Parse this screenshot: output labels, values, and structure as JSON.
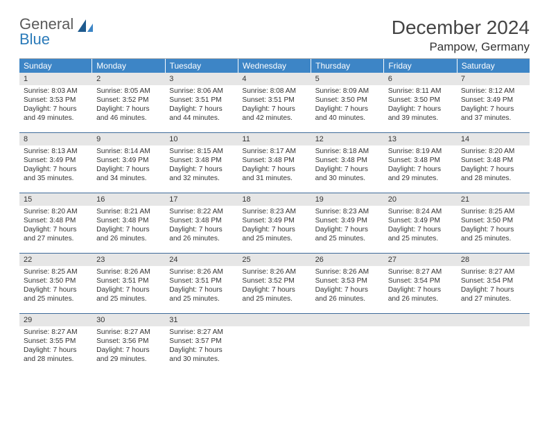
{
  "logo": {
    "word1": "General",
    "word2": "Blue"
  },
  "title": "December 2024",
  "location": "Pampow, Germany",
  "colors": {
    "header_bg": "#3d85c6",
    "header_text": "#ffffff",
    "daynum_bg": "#e6e6e6",
    "week_divider": "#3d6a99",
    "logo_accent": "#2a7ab9",
    "logo_gray": "#5a5a5a"
  },
  "dow": [
    "Sunday",
    "Monday",
    "Tuesday",
    "Wednesday",
    "Thursday",
    "Friday",
    "Saturday"
  ],
  "weeks": [
    [
      {
        "n": "1",
        "sr": "Sunrise: 8:03 AM",
        "ss": "Sunset: 3:53 PM",
        "d1": "Daylight: 7 hours",
        "d2": "and 49 minutes."
      },
      {
        "n": "2",
        "sr": "Sunrise: 8:05 AM",
        "ss": "Sunset: 3:52 PM",
        "d1": "Daylight: 7 hours",
        "d2": "and 46 minutes."
      },
      {
        "n": "3",
        "sr": "Sunrise: 8:06 AM",
        "ss": "Sunset: 3:51 PM",
        "d1": "Daylight: 7 hours",
        "d2": "and 44 minutes."
      },
      {
        "n": "4",
        "sr": "Sunrise: 8:08 AM",
        "ss": "Sunset: 3:51 PM",
        "d1": "Daylight: 7 hours",
        "d2": "and 42 minutes."
      },
      {
        "n": "5",
        "sr": "Sunrise: 8:09 AM",
        "ss": "Sunset: 3:50 PM",
        "d1": "Daylight: 7 hours",
        "d2": "and 40 minutes."
      },
      {
        "n": "6",
        "sr": "Sunrise: 8:11 AM",
        "ss": "Sunset: 3:50 PM",
        "d1": "Daylight: 7 hours",
        "d2": "and 39 minutes."
      },
      {
        "n": "7",
        "sr": "Sunrise: 8:12 AM",
        "ss": "Sunset: 3:49 PM",
        "d1": "Daylight: 7 hours",
        "d2": "and 37 minutes."
      }
    ],
    [
      {
        "n": "8",
        "sr": "Sunrise: 8:13 AM",
        "ss": "Sunset: 3:49 PM",
        "d1": "Daylight: 7 hours",
        "d2": "and 35 minutes."
      },
      {
        "n": "9",
        "sr": "Sunrise: 8:14 AM",
        "ss": "Sunset: 3:49 PM",
        "d1": "Daylight: 7 hours",
        "d2": "and 34 minutes."
      },
      {
        "n": "10",
        "sr": "Sunrise: 8:15 AM",
        "ss": "Sunset: 3:48 PM",
        "d1": "Daylight: 7 hours",
        "d2": "and 32 minutes."
      },
      {
        "n": "11",
        "sr": "Sunrise: 8:17 AM",
        "ss": "Sunset: 3:48 PM",
        "d1": "Daylight: 7 hours",
        "d2": "and 31 minutes."
      },
      {
        "n": "12",
        "sr": "Sunrise: 8:18 AM",
        "ss": "Sunset: 3:48 PM",
        "d1": "Daylight: 7 hours",
        "d2": "and 30 minutes."
      },
      {
        "n": "13",
        "sr": "Sunrise: 8:19 AM",
        "ss": "Sunset: 3:48 PM",
        "d1": "Daylight: 7 hours",
        "d2": "and 29 minutes."
      },
      {
        "n": "14",
        "sr": "Sunrise: 8:20 AM",
        "ss": "Sunset: 3:48 PM",
        "d1": "Daylight: 7 hours",
        "d2": "and 28 minutes."
      }
    ],
    [
      {
        "n": "15",
        "sr": "Sunrise: 8:20 AM",
        "ss": "Sunset: 3:48 PM",
        "d1": "Daylight: 7 hours",
        "d2": "and 27 minutes."
      },
      {
        "n": "16",
        "sr": "Sunrise: 8:21 AM",
        "ss": "Sunset: 3:48 PM",
        "d1": "Daylight: 7 hours",
        "d2": "and 26 minutes."
      },
      {
        "n": "17",
        "sr": "Sunrise: 8:22 AM",
        "ss": "Sunset: 3:48 PM",
        "d1": "Daylight: 7 hours",
        "d2": "and 26 minutes."
      },
      {
        "n": "18",
        "sr": "Sunrise: 8:23 AM",
        "ss": "Sunset: 3:49 PM",
        "d1": "Daylight: 7 hours",
        "d2": "and 25 minutes."
      },
      {
        "n": "19",
        "sr": "Sunrise: 8:23 AM",
        "ss": "Sunset: 3:49 PM",
        "d1": "Daylight: 7 hours",
        "d2": "and 25 minutes."
      },
      {
        "n": "20",
        "sr": "Sunrise: 8:24 AM",
        "ss": "Sunset: 3:49 PM",
        "d1": "Daylight: 7 hours",
        "d2": "and 25 minutes."
      },
      {
        "n": "21",
        "sr": "Sunrise: 8:25 AM",
        "ss": "Sunset: 3:50 PM",
        "d1": "Daylight: 7 hours",
        "d2": "and 25 minutes."
      }
    ],
    [
      {
        "n": "22",
        "sr": "Sunrise: 8:25 AM",
        "ss": "Sunset: 3:50 PM",
        "d1": "Daylight: 7 hours",
        "d2": "and 25 minutes."
      },
      {
        "n": "23",
        "sr": "Sunrise: 8:26 AM",
        "ss": "Sunset: 3:51 PM",
        "d1": "Daylight: 7 hours",
        "d2": "and 25 minutes."
      },
      {
        "n": "24",
        "sr": "Sunrise: 8:26 AM",
        "ss": "Sunset: 3:51 PM",
        "d1": "Daylight: 7 hours",
        "d2": "and 25 minutes."
      },
      {
        "n": "25",
        "sr": "Sunrise: 8:26 AM",
        "ss": "Sunset: 3:52 PM",
        "d1": "Daylight: 7 hours",
        "d2": "and 25 minutes."
      },
      {
        "n": "26",
        "sr": "Sunrise: 8:26 AM",
        "ss": "Sunset: 3:53 PM",
        "d1": "Daylight: 7 hours",
        "d2": "and 26 minutes."
      },
      {
        "n": "27",
        "sr": "Sunrise: 8:27 AM",
        "ss": "Sunset: 3:54 PM",
        "d1": "Daylight: 7 hours",
        "d2": "and 26 minutes."
      },
      {
        "n": "28",
        "sr": "Sunrise: 8:27 AM",
        "ss": "Sunset: 3:54 PM",
        "d1": "Daylight: 7 hours",
        "d2": "and 27 minutes."
      }
    ],
    [
      {
        "n": "29",
        "sr": "Sunrise: 8:27 AM",
        "ss": "Sunset: 3:55 PM",
        "d1": "Daylight: 7 hours",
        "d2": "and 28 minutes."
      },
      {
        "n": "30",
        "sr": "Sunrise: 8:27 AM",
        "ss": "Sunset: 3:56 PM",
        "d1": "Daylight: 7 hours",
        "d2": "and 29 minutes."
      },
      {
        "n": "31",
        "sr": "Sunrise: 8:27 AM",
        "ss": "Sunset: 3:57 PM",
        "d1": "Daylight: 7 hours",
        "d2": "and 30 minutes."
      },
      null,
      null,
      null,
      null
    ]
  ]
}
